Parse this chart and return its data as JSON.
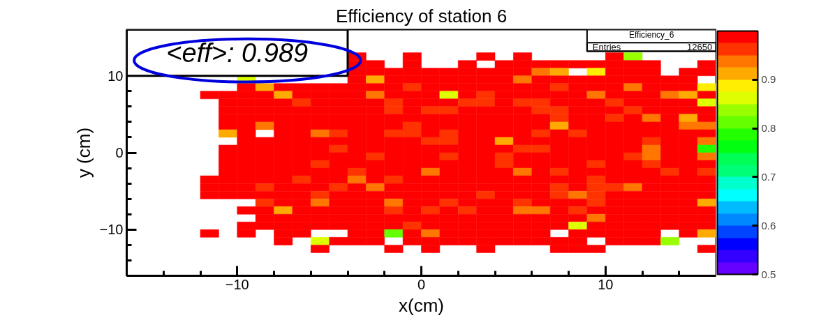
{
  "chart_data": {
    "type": "heatmap",
    "title": "Efficiency of station 6",
    "xlabel": "x(cm)",
    "ylabel": "y (cm)",
    "annotations": [
      "<eff>: 0.989",
      "Efficiency_6",
      "Entries",
      "12650"
    ],
    "xlim": [
      -16,
      16
    ],
    "ylim": [
      -16,
      16
    ],
    "xticks": [
      {
        "value": -14,
        "label": null
      },
      {
        "value": -12,
        "label": null
      },
      {
        "value": -10,
        "label": "−10"
      },
      {
        "value": -8,
        "label": null
      },
      {
        "value": -6,
        "label": null
      },
      {
        "value": -4,
        "label": null
      },
      {
        "value": -2,
        "label": null
      },
      0,
      {
        "value": 2,
        "label": null
      },
      {
        "value": 4,
        "label": null
      },
      {
        "value": 6,
        "label": null
      },
      {
        "value": 8,
        "label": null
      },
      10,
      {
        "value": 12,
        "label": null
      },
      {
        "value": 14,
        "label": null
      }
    ],
    "yticks": [
      {
        "value": -14,
        "label": null
      },
      {
        "value": -12,
        "label": null
      },
      {
        "value": -10,
        "label": "−10"
      },
      {
        "value": -8,
        "label": null
      },
      {
        "value": -6,
        "label": null
      },
      {
        "value": -4,
        "label": null
      },
      {
        "value": -2,
        "label": null
      },
      0,
      {
        "value": 2,
        "label": null
      },
      {
        "value": 4,
        "label": null
      },
      {
        "value": 6,
        "label": null
      },
      {
        "value": 8,
        "label": null
      },
      10,
      {
        "value": 12,
        "label": null
      },
      {
        "value": 14,
        "label": null
      }
    ],
    "clim": [
      0.5,
      1.0
    ],
    "cticks": [
      0.5,
      0.6,
      0.7,
      0.8,
      0.9
    ],
    "colors": [
      "#6600ff",
      "#3300ff",
      "#0000ff",
      "#0044ff",
      "#0088ff",
      "#00bbff",
      "#00ffff",
      "#00ffcc",
      "#00ff77",
      "#00ff55",
      "#00ff11",
      "#22ff00",
      "#66ff00",
      "#99ff00",
      "#ddff00",
      "#ffee00",
      "#ffaa00",
      "#ff7700",
      "#ff3300",
      "#ff0000"
    ],
    "x": [
      -11.5,
      -10.5,
      -9.5,
      -8.5,
      -7.5,
      -6.5,
      -5.5,
      -4.5,
      -3.5,
      -2.5,
      -1.5,
      -0.5,
      0.5,
      1.5,
      2.5,
      3.5,
      4.5,
      5.5,
      6.5,
      7.5,
      8.5,
      9.5,
      10.5,
      11.5,
      12.5,
      13.5,
      14.5,
      15.5
    ],
    "y": [
      12.5,
      11.5,
      10.5,
      9.5,
      8.5,
      7.5,
      6.5,
      5.5,
      4.5,
      3.5,
      2.5,
      1.5,
      0.5,
      -0.5,
      -1.5,
      -2.5,
      -3.5,
      -4.5,
      -5.5,
      -6.5,
      -7.5,
      -8.5,
      -9.5,
      -10.5,
      -11.5,
      -12.5
    ],
    "cells": [
      [
        null,
        null,
        null,
        null,
        null,
        null,
        null,
        null,
        0.99,
        null,
        null,
        0.99,
        null,
        null,
        null,
        0.99,
        null,
        0.99,
        null,
        null,
        null,
        null,
        0.99,
        0.84,
        null,
        null,
        null,
        null
      ],
      [
        null,
        null,
        null,
        null,
        null,
        null,
        null,
        null,
        0.99,
        0.99,
        null,
        0.99,
        null,
        null,
        0.99,
        null,
        0.99,
        0.99,
        0.99,
        0.99,
        0.99,
        0.99,
        0.99,
        0.99,
        0.99,
        null,
        null,
        0.99
      ],
      [
        null,
        null,
        null,
        null,
        null,
        null,
        null,
        null,
        0.99,
        0.99,
        0.99,
        0.99,
        0.99,
        0.99,
        0.99,
        0.99,
        0.99,
        0.99,
        0.94,
        0.91,
        null,
        0.89,
        0.99,
        0.99,
        0.99,
        null,
        0.99,
        0.99
      ],
      [
        null,
        null,
        0.86,
        null,
        null,
        null,
        null,
        null,
        0.99,
        0.91,
        0.99,
        0.99,
        0.99,
        0.99,
        0.99,
        0.99,
        0.99,
        0.94,
        0.99,
        0.99,
        0.99,
        0.99,
        0.99,
        0.99,
        0.99,
        0.99,
        0.99,
        null
      ],
      [
        null,
        null,
        0.99,
        0.91,
        0.99,
        0.99,
        0.99,
        0.99,
        0.99,
        0.99,
        0.99,
        0.96,
        0.99,
        0.99,
        0.99,
        0.99,
        0.99,
        0.99,
        0.99,
        0.96,
        0.99,
        0.99,
        0.99,
        0.94,
        0.99,
        0.99,
        0.99,
        0.89
      ],
      [
        0.99,
        0.99,
        0.99,
        0.99,
        0.91,
        0.99,
        0.99,
        0.99,
        0.99,
        0.94,
        0.99,
        0.99,
        0.99,
        0.86,
        0.99,
        0.96,
        0.99,
        0.99,
        0.99,
        0.99,
        0.99,
        0.94,
        0.99,
        0.99,
        0.99,
        0.94,
        0.91,
        0.99
      ],
      [
        null,
        0.99,
        0.99,
        0.99,
        0.99,
        0.96,
        0.99,
        0.99,
        0.99,
        0.99,
        0.96,
        0.99,
        0.99,
        0.99,
        0.96,
        0.96,
        0.99,
        0.96,
        0.96,
        0.99,
        0.99,
        0.99,
        0.96,
        0.99,
        0.99,
        0.99,
        0.99,
        0.86
      ],
      [
        null,
        0.99,
        0.99,
        0.99,
        0.99,
        0.99,
        0.99,
        0.99,
        0.99,
        0.99,
        0.96,
        0.99,
        0.96,
        0.96,
        0.99,
        0.99,
        0.99,
        0.99,
        0.96,
        0.96,
        0.99,
        0.99,
        0.99,
        0.96,
        0.99,
        0.99,
        0.99,
        0.99
      ],
      [
        null,
        0.99,
        0.99,
        0.99,
        0.99,
        0.99,
        0.99,
        0.99,
        0.99,
        0.99,
        0.99,
        0.99,
        0.99,
        0.99,
        0.99,
        0.99,
        0.99,
        0.99,
        0.99,
        0.96,
        0.99,
        0.99,
        0.96,
        0.99,
        0.94,
        0.99,
        0.91,
        0.99
      ],
      [
        null,
        0.99,
        0.99,
        0.94,
        0.99,
        0.99,
        0.99,
        0.99,
        0.99,
        0.99,
        0.99,
        0.96,
        0.99,
        0.99,
        0.99,
        0.99,
        0.99,
        0.99,
        0.99,
        0.91,
        0.99,
        0.99,
        0.99,
        0.99,
        0.99,
        0.99,
        0.94,
        0.94
      ],
      [
        null,
        0.91,
        0.99,
        null,
        0.99,
        0.99,
        0.94,
        0.96,
        0.99,
        0.99,
        0.96,
        0.96,
        0.99,
        0.96,
        0.99,
        0.99,
        0.99,
        0.99,
        0.96,
        0.99,
        0.96,
        0.99,
        0.99,
        0.99,
        0.99,
        0.99,
        0.99,
        0.99
      ],
      [
        null,
        null,
        0.99,
        0.99,
        0.99,
        0.99,
        0.99,
        0.99,
        0.99,
        0.99,
        0.99,
        0.99,
        0.96,
        0.96,
        0.99,
        0.99,
        0.91,
        0.99,
        0.99,
        0.99,
        0.99,
        0.99,
        0.99,
        0.99,
        0.96,
        0.99,
        0.99,
        0.94
      ],
      [
        null,
        0.99,
        0.99,
        0.99,
        0.99,
        0.99,
        0.99,
        0.96,
        0.99,
        0.99,
        0.99,
        0.99,
        0.99,
        0.99,
        0.99,
        0.99,
        0.99,
        0.96,
        0.96,
        0.99,
        0.99,
        0.99,
        0.99,
        0.99,
        0.94,
        0.99,
        0.99,
        0.78
      ],
      [
        null,
        0.99,
        0.99,
        0.99,
        0.99,
        0.99,
        0.99,
        0.99,
        0.99,
        0.96,
        0.99,
        0.99,
        0.99,
        0.96,
        0.99,
        0.99,
        0.96,
        0.99,
        0.99,
        0.99,
        0.99,
        0.99,
        0.99,
        0.96,
        0.94,
        0.99,
        0.99,
        0.94
      ],
      [
        null,
        0.99,
        0.99,
        0.99,
        0.99,
        0.99,
        0.96,
        0.99,
        0.99,
        0.99,
        0.99,
        0.99,
        0.99,
        0.99,
        0.99,
        0.99,
        0.96,
        0.99,
        0.99,
        0.99,
        0.99,
        0.96,
        0.99,
        0.99,
        0.96,
        0.99,
        0.99,
        0.99
      ],
      [
        null,
        0.99,
        0.99,
        0.99,
        0.99,
        0.99,
        0.99,
        0.99,
        0.96,
        0.99,
        0.99,
        0.99,
        0.94,
        0.99,
        0.99,
        0.99,
        0.99,
        0.94,
        0.99,
        0.96,
        0.99,
        0.99,
        0.99,
        0.99,
        0.99,
        0.96,
        0.99,
        0.96
      ],
      [
        0.99,
        0.99,
        0.99,
        0.99,
        0.99,
        0.96,
        0.99,
        0.99,
        0.94,
        0.99,
        0.96,
        0.99,
        0.99,
        0.99,
        0.99,
        0.99,
        0.99,
        0.99,
        0.99,
        0.99,
        0.99,
        0.96,
        0.99,
        0.99,
        0.99,
        0.99,
        0.99,
        0.99
      ],
      [
        0.99,
        0.99,
        0.99,
        0.96,
        0.99,
        0.99,
        0.99,
        0.96,
        0.99,
        0.94,
        0.99,
        0.99,
        0.99,
        0.99,
        0.99,
        0.99,
        0.99,
        0.99,
        0.99,
        0.96,
        0.99,
        0.96,
        0.96,
        0.94,
        0.99,
        0.99,
        0.99,
        0.99
      ],
      [
        0.99,
        0.99,
        0.99,
        0.99,
        0.99,
        0.99,
        0.96,
        0.99,
        0.99,
        0.99,
        0.99,
        0.99,
        0.99,
        0.99,
        0.99,
        0.96,
        0.99,
        0.99,
        0.99,
        0.96,
        0.94,
        0.96,
        0.99,
        0.99,
        0.99,
        0.99,
        0.99,
        0.99
      ],
      [
        null,
        null,
        null,
        0.96,
        0.99,
        0.99,
        0.94,
        0.99,
        0.99,
        0.99,
        0.94,
        0.99,
        0.99,
        0.96,
        0.99,
        0.99,
        0.99,
        0.96,
        0.99,
        0.99,
        0.99,
        0.96,
        0.99,
        0.99,
        0.99,
        0.99,
        0.99,
        0.91
      ],
      [
        null,
        null,
        0.99,
        0.99,
        0.91,
        0.99,
        0.99,
        0.99,
        0.99,
        0.99,
        0.96,
        0.99,
        0.96,
        0.99,
        0.96,
        0.99,
        0.99,
        0.94,
        0.94,
        0.99,
        0.96,
        0.99,
        0.99,
        0.99,
        0.99,
        0.99,
        0.99,
        0.99
      ],
      [
        null,
        null,
        null,
        0.99,
        0.99,
        0.99,
        0.99,
        0.99,
        0.99,
        0.99,
        0.99,
        0.99,
        0.99,
        0.99,
        0.99,
        0.99,
        0.99,
        0.99,
        0.99,
        0.99,
        0.99,
        0.94,
        0.99,
        0.99,
        0.99,
        0.99,
        0.99,
        0.99
      ],
      [
        null,
        null,
        0.99,
        0.99,
        0.99,
        0.99,
        0.99,
        0.99,
        0.99,
        0.99,
        0.99,
        0.96,
        0.99,
        0.99,
        0.99,
        0.99,
        0.99,
        0.99,
        0.99,
        0.99,
        0.86,
        0.99,
        0.99,
        0.99,
        0.99,
        0.99,
        0.99,
        0.99
      ],
      [
        0.99,
        null,
        0.99,
        null,
        0.99,
        0.99,
        null,
        null,
        0.99,
        0.99,
        0.81,
        0.99,
        0.94,
        0.99,
        0.99,
        0.99,
        0.99,
        0.99,
        0.99,
        null,
        0.99,
        0.99,
        0.99,
        0.99,
        0.99,
        null,
        0.99,
        0.91
      ],
      [
        null,
        null,
        null,
        null,
        0.99,
        null,
        0.86,
        0.99,
        0.99,
        0.99,
        null,
        0.99,
        0.99,
        0.99,
        0.99,
        0.99,
        0.99,
        0.99,
        0.99,
        0.99,
        0.99,
        null,
        0.99,
        0.99,
        0.99,
        0.84,
        null,
        null
      ],
      [
        null,
        null,
        null,
        null,
        null,
        null,
        0.99,
        null,
        null,
        null,
        0.99,
        null,
        0.99,
        null,
        null,
        0.99,
        null,
        null,
        null,
        0.99,
        0.99,
        0.99,
        null,
        null,
        null,
        null,
        null,
        0.99
      ]
    ]
  }
}
